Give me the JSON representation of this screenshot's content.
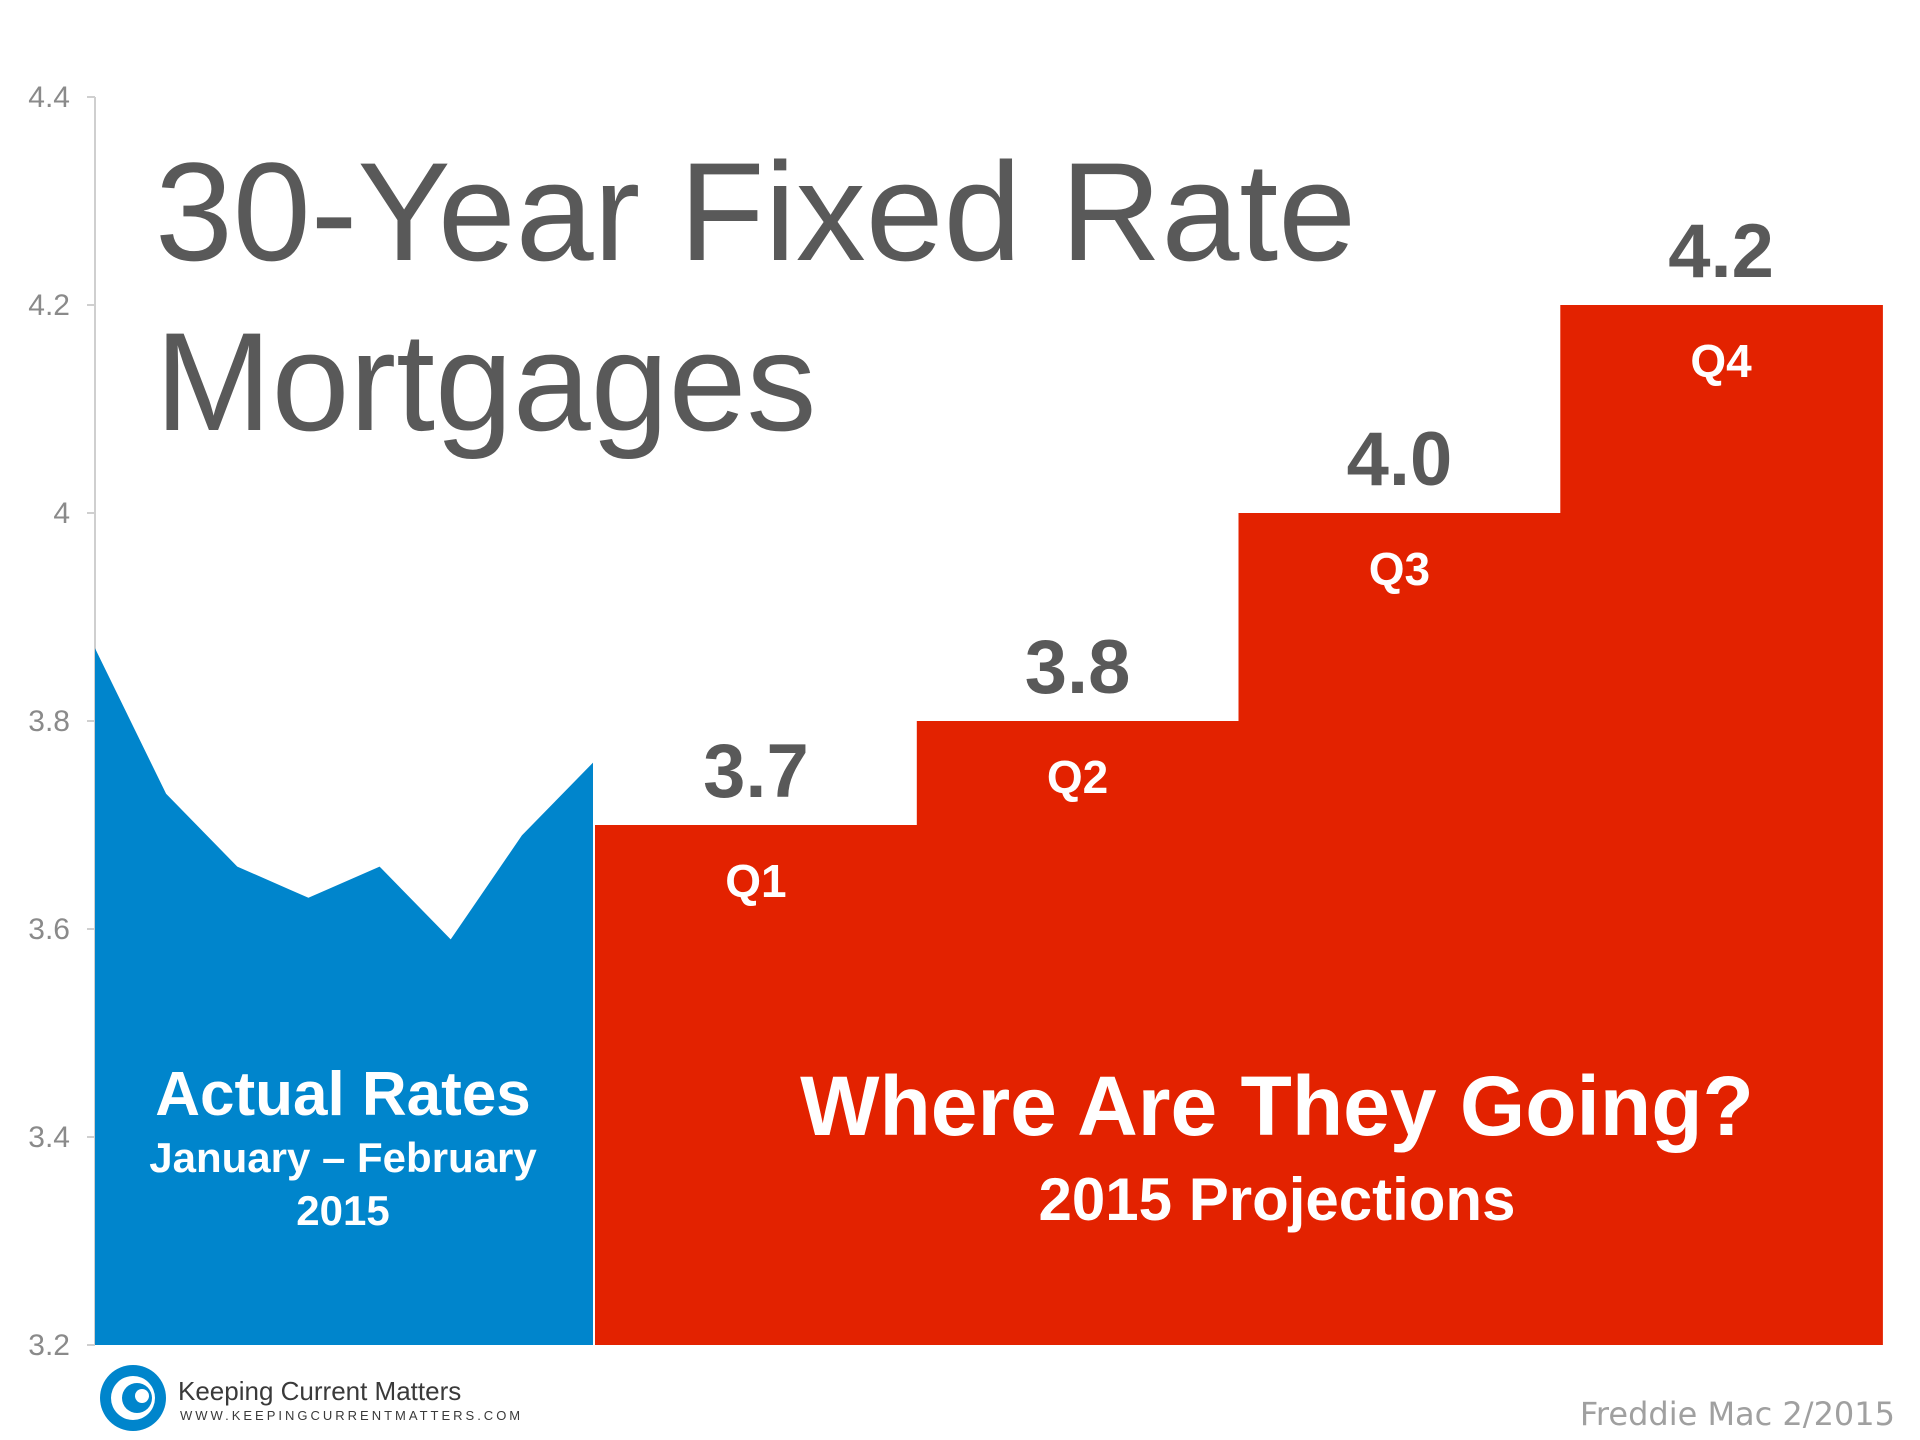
{
  "chart_data": {
    "type": "area",
    "title_line1": "30-Year Fixed Rate",
    "title_line2": "Mortgages",
    "ylim": [
      3.2,
      4.4
    ],
    "yticks": [
      "4.4",
      "4.2",
      "4",
      "3.8",
      "3.6",
      "3.4",
      "3.2"
    ],
    "actual": {
      "label": "Actual Rates",
      "sublabel_line1": "January – February",
      "sublabel_line2": "2015",
      "values": [
        3.87,
        3.73,
        3.66,
        3.63,
        3.66,
        3.59,
        3.69,
        3.76
      ],
      "color": "#0085CC"
    },
    "projections": {
      "label": "Where Are They Going?",
      "sublabel": "2015 Projections",
      "categories": [
        "Q1",
        "Q2",
        "Q3",
        "Q4"
      ],
      "values": [
        3.7,
        3.8,
        4.0,
        4.2
      ],
      "value_labels": [
        "3.7",
        "3.8",
        "4.0",
        "4.2"
      ],
      "color": "#E32200"
    }
  },
  "logo": {
    "name": "Keeping Current Matters",
    "url": "WWW.KEEPINGCURRENTMATTERS.COM",
    "color": "#0085CC"
  },
  "source": "Freddie Mac 2/2015"
}
